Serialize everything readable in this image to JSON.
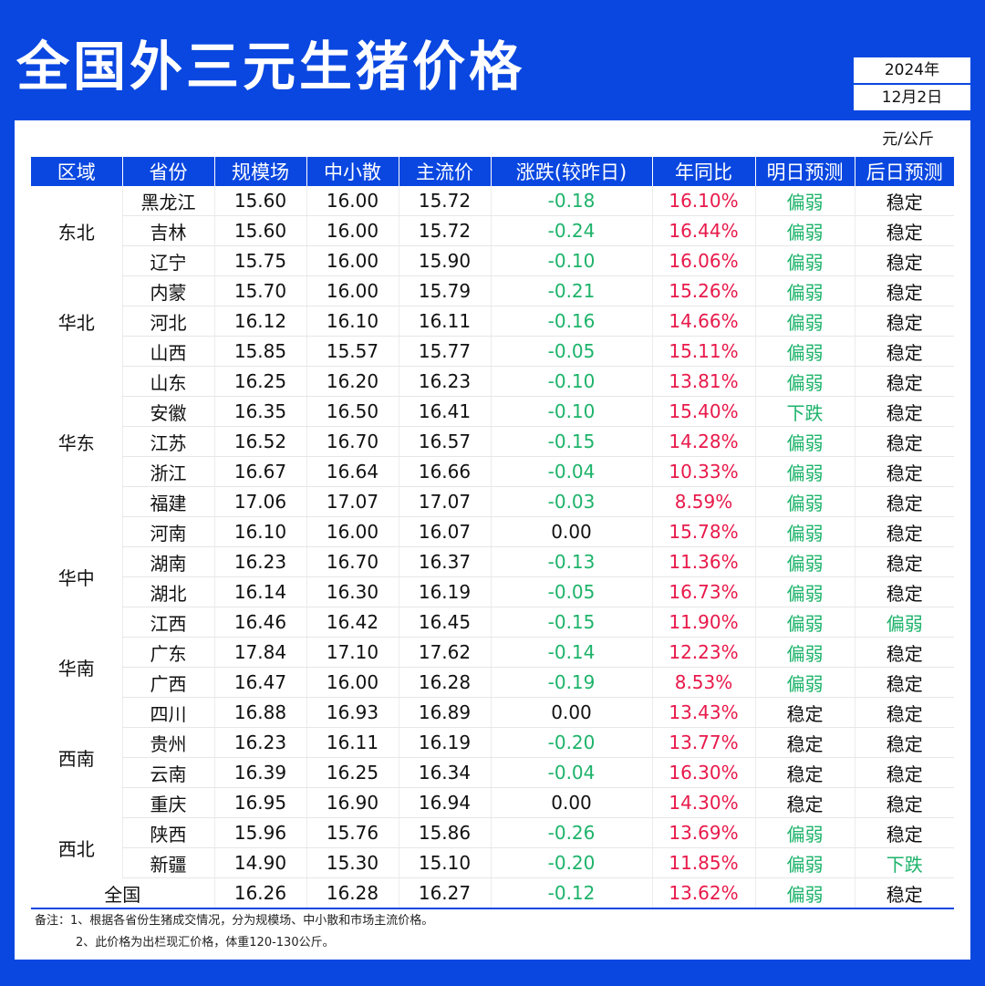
{
  "title": "全国外三元生猪价格",
  "date": {
    "year": "2024年",
    "day": "12月2日"
  },
  "unit": "元/公斤",
  "headers": [
    "区域",
    "省份",
    "规模场",
    "中小散",
    "主流价",
    "涨跌(较昨日)",
    "年同比",
    "明日预测",
    "后日预测"
  ],
  "regions": [
    {
      "name": "东北",
      "rows": 3
    },
    {
      "name": "华北",
      "rows": 3
    },
    {
      "name": "华东",
      "rows": 5
    },
    {
      "name": "华中",
      "rows": 4
    },
    {
      "name": "华南",
      "rows": 2
    },
    {
      "name": "西南",
      "rows": 4
    },
    {
      "name": "西北",
      "rows": 2
    }
  ],
  "rows": [
    [
      "黑龙江",
      "15.60",
      "16.00",
      "15.72",
      "-0.18",
      "16.10%",
      "偏弱",
      "稳定"
    ],
    [
      "吉林",
      "15.60",
      "16.00",
      "15.72",
      "-0.24",
      "16.44%",
      "偏弱",
      "稳定"
    ],
    [
      "辽宁",
      "15.75",
      "16.00",
      "15.90",
      "-0.10",
      "16.06%",
      "偏弱",
      "稳定"
    ],
    [
      "内蒙",
      "15.70",
      "16.00",
      "15.79",
      "-0.21",
      "15.26%",
      "偏弱",
      "稳定"
    ],
    [
      "河北",
      "16.12",
      "16.10",
      "16.11",
      "-0.16",
      "14.66%",
      "偏弱",
      "稳定"
    ],
    [
      "山西",
      "15.85",
      "15.57",
      "15.77",
      "-0.05",
      "15.11%",
      "偏弱",
      "稳定"
    ],
    [
      "山东",
      "16.25",
      "16.20",
      "16.23",
      "-0.10",
      "13.81%",
      "偏弱",
      "稳定"
    ],
    [
      "安徽",
      "16.35",
      "16.50",
      "16.41",
      "-0.10",
      "15.40%",
      "下跌",
      "稳定"
    ],
    [
      "江苏",
      "16.52",
      "16.70",
      "16.57",
      "-0.15",
      "14.28%",
      "偏弱",
      "稳定"
    ],
    [
      "浙江",
      "16.67",
      "16.64",
      "16.66",
      "-0.04",
      "10.33%",
      "偏弱",
      "稳定"
    ],
    [
      "福建",
      "17.06",
      "17.07",
      "17.07",
      "-0.03",
      "8.59%",
      "偏弱",
      "稳定"
    ],
    [
      "河南",
      "16.10",
      "16.00",
      "16.07",
      "0.00",
      "15.78%",
      "偏弱",
      "稳定"
    ],
    [
      "湖南",
      "16.23",
      "16.70",
      "16.37",
      "-0.13",
      "11.36%",
      "偏弱",
      "稳定"
    ],
    [
      "湖北",
      "16.14",
      "16.30",
      "16.19",
      "-0.05",
      "16.73%",
      "偏弱",
      "稳定"
    ],
    [
      "江西",
      "16.46",
      "16.42",
      "16.45",
      "-0.15",
      "11.90%",
      "偏弱",
      "偏弱"
    ],
    [
      "广东",
      "17.84",
      "17.10",
      "17.62",
      "-0.14",
      "12.23%",
      "偏弱",
      "稳定"
    ],
    [
      "广西",
      "16.47",
      "16.00",
      "16.28",
      "-0.19",
      "8.53%",
      "偏弱",
      "稳定"
    ],
    [
      "四川",
      "16.88",
      "16.93",
      "16.89",
      "0.00",
      "13.43%",
      "稳定",
      "稳定"
    ],
    [
      "贵州",
      "16.23",
      "16.11",
      "16.19",
      "-0.20",
      "13.77%",
      "稳定",
      "稳定"
    ],
    [
      "云南",
      "16.39",
      "16.25",
      "16.34",
      "-0.04",
      "16.30%",
      "稳定",
      "稳定"
    ],
    [
      "重庆",
      "16.95",
      "16.90",
      "16.94",
      "0.00",
      "14.30%",
      "稳定",
      "稳定"
    ],
    [
      "陕西",
      "15.96",
      "15.76",
      "15.86",
      "-0.26",
      "13.69%",
      "偏弱",
      "稳定"
    ],
    [
      "新疆",
      "14.90",
      "15.30",
      "15.10",
      "-0.20",
      "11.85%",
      "偏弱",
      "下跌"
    ]
  ],
  "total": [
    "全国",
    "16.26",
    "16.28",
    "16.27",
    "-0.12",
    "13.62%",
    "偏弱",
    "稳定"
  ],
  "notes": [
    "备注：1、根据各省份生猪成交情况，分为规模场、中小散和市场主流价格。",
    "2、此价格为出栏现汇价格，体重120-130公斤。"
  ],
  "colors": {
    "brand_blue": "#0a47e0",
    "down_green": "#1db36a",
    "yoy_red": "#e8194a"
  }
}
